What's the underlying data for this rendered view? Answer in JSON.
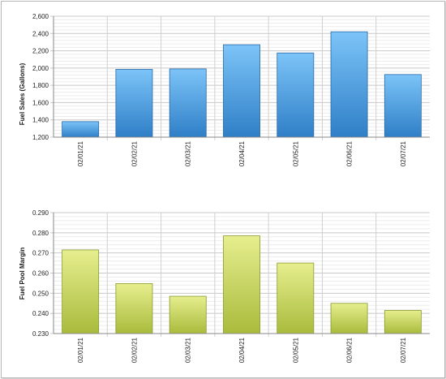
{
  "chart_data": [
    {
      "type": "bar",
      "ylabel": "Fuel Sales (Gallons)",
      "xlabel": "",
      "categories": [
        "02/01/21",
        "02/02/21",
        "02/03/21",
        "02/04/21",
        "02/05/21",
        "02/06/21",
        "02/07/21"
      ],
      "values": [
        1380,
        1985,
        1990,
        2270,
        2175,
        2420,
        1925
      ],
      "ylim": [
        1200,
        2600
      ],
      "yticks": [
        1200,
        1400,
        1600,
        1800,
        2000,
        2200,
        2400,
        2600
      ],
      "ytick_labels": [
        "1,200",
        "1,400",
        "1,600",
        "1,800",
        "2,000",
        "2,200",
        "2,400",
        "2,600"
      ],
      "grid": true,
      "colors": {
        "top": "#7cc4f8",
        "bottom": "#2f7fc7",
        "stroke": "#2a6aa8"
      }
    },
    {
      "type": "bar",
      "ylabel": "Fuel Pool Margin",
      "xlabel": "",
      "categories": [
        "02/01/21",
        "02/02/21",
        "02/03/21",
        "02/04/21",
        "02/05/21",
        "02/06/21",
        "02/07/21"
      ],
      "values": [
        0.2715,
        0.2548,
        0.2485,
        0.2785,
        0.265,
        0.245,
        0.2415
      ],
      "ylim": [
        0.23,
        0.29
      ],
      "yticks": [
        0.23,
        0.24,
        0.25,
        0.26,
        0.27,
        0.28,
        0.29
      ],
      "ytick_labels": [
        "0.230",
        "0.240",
        "0.250",
        "0.260",
        "0.270",
        "0.280",
        "0.290"
      ],
      "grid": true,
      "colors": {
        "top": "#e6ee8e",
        "bottom": "#a9bb3c",
        "stroke": "#8a9a30"
      }
    }
  ]
}
